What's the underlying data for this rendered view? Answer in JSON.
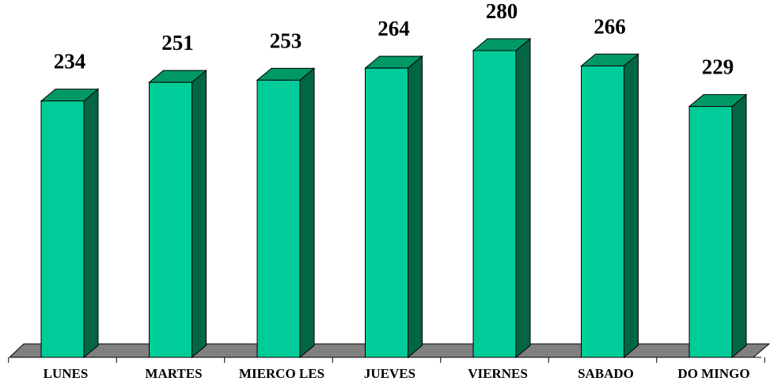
{
  "chart_data": {
    "type": "bar",
    "title": "",
    "xlabel": "",
    "ylabel": "",
    "categories": [
      "LUNES",
      "MARTES",
      "MIERCOLES",
      "JUEVES",
      "VIERNES",
      "SABADO",
      "DOMINGO"
    ],
    "category_display": [
      "LUNES",
      "MARTES",
      "MIERCO LES",
      "JUEVES",
      "VIERNES",
      "SABADO",
      "DO MINGO"
    ],
    "values": [
      234,
      251,
      253,
      264,
      280,
      266,
      229
    ],
    "ylim": [
      0,
      280
    ],
    "grid": false,
    "legend": "none",
    "style": "3d-column",
    "colors": {
      "bar_front": "#00CC99",
      "bar_top": "#009966",
      "bar_side": "#006644",
      "floor": "#808080",
      "outline": "#000000"
    }
  }
}
